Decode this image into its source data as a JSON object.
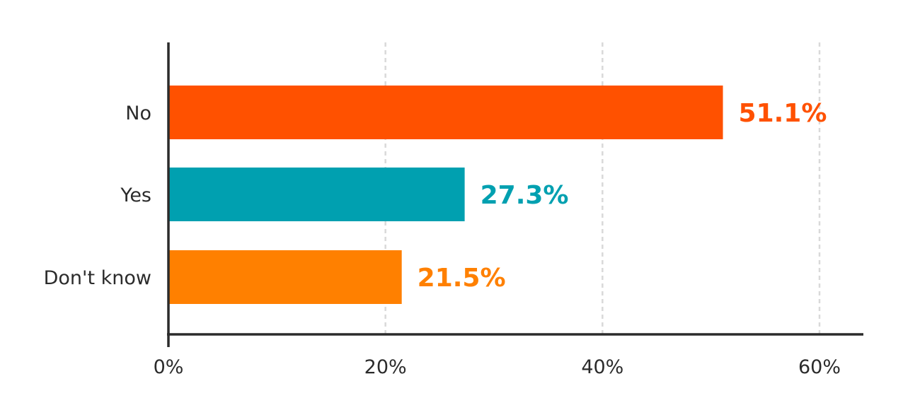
{
  "chart_data": {
    "type": "bar",
    "orientation": "horizontal",
    "categories": [
      "No",
      "Yes",
      "Don't know"
    ],
    "values": [
      51.1,
      27.3,
      21.5
    ],
    "value_labels": [
      "51.1%",
      "27.3%",
      "21.5%"
    ],
    "colors": [
      "#FF5100",
      "#00A0B0",
      "#FF8000"
    ],
    "xlim": [
      0,
      64
    ],
    "x_ticks": [
      0,
      20,
      40,
      60
    ],
    "x_tick_labels": [
      "0%",
      "20%",
      "40%",
      "60%"
    ],
    "grid": true,
    "grid_color": "#d9d9d9",
    "axis_color": "#2b2b2b",
    "text_color": "#2b2b2b"
  }
}
